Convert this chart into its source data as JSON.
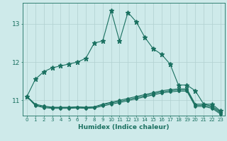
{
  "xlabel": "Humidex (Indice chaleur)",
  "xlim": [
    -0.5,
    23.5
  ],
  "ylim": [
    10.6,
    13.55
  ],
  "yticks": [
    11,
    12,
    13
  ],
  "xticks": [
    0,
    1,
    2,
    3,
    4,
    5,
    6,
    7,
    8,
    9,
    10,
    11,
    12,
    13,
    14,
    15,
    16,
    17,
    18,
    19,
    20,
    21,
    22,
    23
  ],
  "bg_color": "#ceeaea",
  "grid_color": "#b0d0d0",
  "line_color": "#1a7060",
  "lines": [
    {
      "x": [
        0,
        1,
        2,
        3,
        4,
        5,
        6,
        7,
        8,
        9,
        10,
        11,
        12,
        13,
        14,
        15,
        16,
        17,
        18,
        19,
        20,
        21,
        22,
        23
      ],
      "y": [
        11.1,
        11.55,
        11.75,
        11.85,
        11.9,
        11.95,
        12.0,
        12.1,
        12.5,
        12.55,
        13.35,
        12.55,
        13.3,
        13.05,
        12.65,
        12.35,
        12.2,
        11.95,
        11.4,
        11.4,
        11.25,
        10.9,
        10.9,
        10.72
      ],
      "marker": "*",
      "ms": 4.5
    },
    {
      "x": [
        0,
        1,
        2,
        3,
        4,
        5,
        6,
        7,
        8,
        9,
        10,
        11,
        12,
        13,
        14,
        15,
        16,
        17,
        18,
        19,
        20,
        21,
        22,
        23
      ],
      "y": [
        11.1,
        10.9,
        10.85,
        10.82,
        10.82,
        10.82,
        10.83,
        10.82,
        10.83,
        10.9,
        10.95,
        11.0,
        11.05,
        11.1,
        11.15,
        11.2,
        11.25,
        11.28,
        11.3,
        11.3,
        10.9,
        10.9,
        10.85,
        10.7
      ],
      "marker": "D",
      "ms": 2.0
    },
    {
      "x": [
        0,
        1,
        2,
        3,
        4,
        5,
        6,
        7,
        8,
        9,
        10,
        11,
        12,
        13,
        14,
        15,
        16,
        17,
        18,
        19,
        20,
        21,
        22,
        23
      ],
      "y": [
        11.1,
        10.88,
        10.83,
        10.81,
        10.81,
        10.81,
        10.82,
        10.81,
        10.82,
        10.88,
        10.93,
        10.97,
        11.02,
        11.07,
        11.12,
        11.17,
        11.22,
        11.25,
        11.27,
        11.27,
        10.87,
        10.87,
        10.82,
        10.67
      ],
      "marker": "D",
      "ms": 2.0
    },
    {
      "x": [
        0,
        1,
        2,
        3,
        4,
        5,
        6,
        7,
        8,
        9,
        10,
        11,
        12,
        13,
        14,
        15,
        16,
        17,
        18,
        19,
        20,
        21,
        22,
        23
      ],
      "y": [
        11.1,
        10.86,
        10.81,
        10.79,
        10.79,
        10.79,
        10.8,
        10.79,
        10.8,
        10.85,
        10.9,
        10.94,
        10.99,
        11.04,
        11.09,
        11.14,
        11.19,
        11.22,
        11.24,
        11.24,
        10.84,
        10.84,
        10.79,
        10.64
      ],
      "marker": "D",
      "ms": 2.0
    }
  ]
}
